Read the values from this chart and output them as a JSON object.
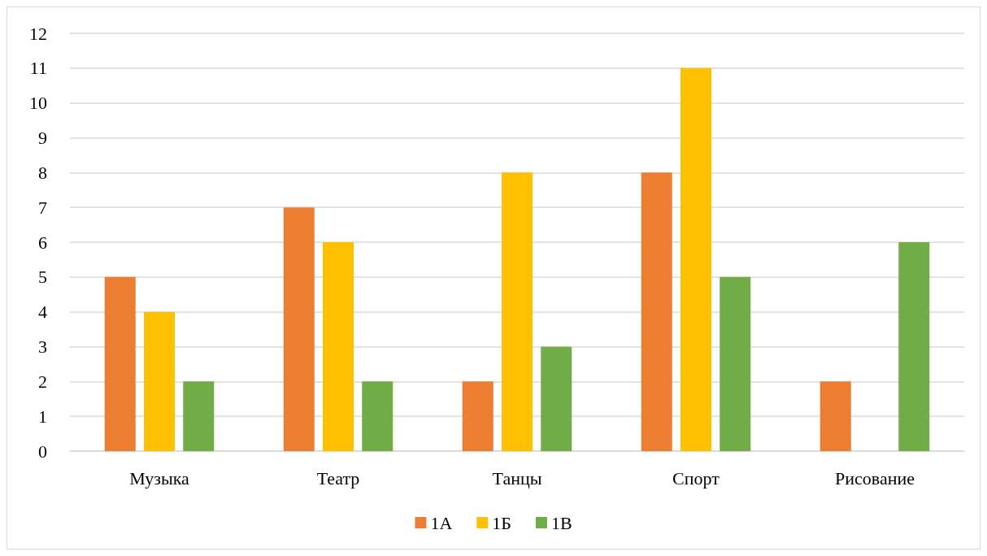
{
  "chart_data": {
    "type": "bar",
    "categories": [
      "Музыка",
      "Театр",
      "Танцы",
      "Спорт",
      "Рисование"
    ],
    "series": [
      {
        "name": "1А",
        "color": "#ed7d31",
        "values": [
          5,
          7,
          2,
          8,
          2
        ]
      },
      {
        "name": "1Б",
        "color": "#ffc000",
        "values": [
          4,
          6,
          8,
          11,
          0
        ]
      },
      {
        "name": "1В",
        "color": "#70ad47",
        "values": [
          2,
          2,
          3,
          5,
          6
        ]
      }
    ],
    "ylim": [
      0,
      12
    ],
    "yticks": [
      0,
      1,
      2,
      3,
      4,
      5,
      6,
      7,
      8,
      9,
      10,
      11,
      12
    ],
    "grid": "y",
    "legend": "bottom"
  }
}
